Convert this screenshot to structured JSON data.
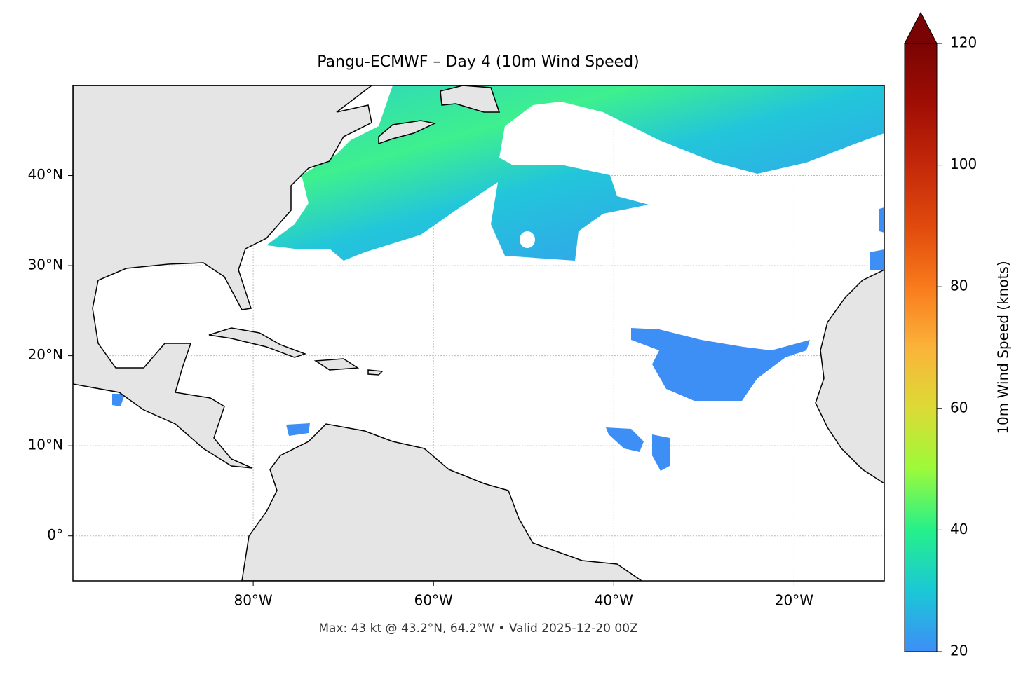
{
  "title": "Pangu-ECMWF – Day 4 (10m Wind Speed)",
  "footnote": "Max: 43 kt @ 43.2°N, 64.2°W • Valid 2025-12-20 00Z",
  "map": {
    "xlim": [
      -100,
      -10
    ],
    "ylim": [
      -5,
      50
    ],
    "grid": true,
    "xticks": [
      {
        "value": -80,
        "label": "80°W"
      },
      {
        "value": -60,
        "label": "60°W"
      },
      {
        "value": -40,
        "label": "40°W"
      },
      {
        "value": -20,
        "label": "20°W"
      }
    ],
    "yticks": [
      {
        "value": 0,
        "label": "0°"
      },
      {
        "value": 10,
        "label": "10°N"
      },
      {
        "value": 20,
        "label": "20°N"
      },
      {
        "value": 30,
        "label": "30°N"
      },
      {
        "value": 40,
        "label": "40°N"
      }
    ]
  },
  "colorbar": {
    "label": "10m Wind Speed (knots)",
    "lim": [
      20,
      120
    ],
    "ticks": [
      20,
      40,
      60,
      80,
      100,
      120
    ],
    "extend": "max"
  }
}
